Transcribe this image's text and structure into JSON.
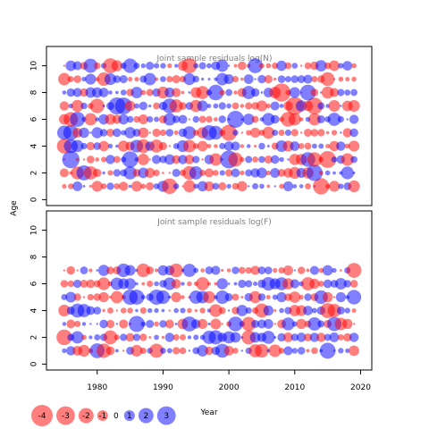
{
  "chart_data": {
    "type": "scatter",
    "subtype": "bubble",
    "ylabel": "Age",
    "xlabel": "Year",
    "xlim": [
      1972.3,
      2021.7
    ],
    "ylim": [
      -0.44,
      11.44
    ],
    "x_ticks": [
      1980,
      1990,
      2000,
      2010,
      2020
    ],
    "y_ticks": [
      0,
      2,
      4,
      6,
      8,
      10
    ],
    "colors": {
      "positive": "#0000ff",
      "negative": "#ff0000",
      "opacity": 0.5
    },
    "panels": [
      {
        "title": "Joint sample residuals log(N)",
        "years": [
          1975,
          2019
        ],
        "ages": [
          1,
          10
        ],
        "residual_seed": 11,
        "residual_mode": "random"
      },
      {
        "title": "Joint sample residuals log(F)",
        "years": [
          1975,
          2019
        ],
        "ages": [
          1,
          7
        ],
        "residual_seed": 29,
        "residual_mode": "random"
      }
    ],
    "legend": {
      "values": [
        -4,
        -3,
        -2,
        -1,
        0,
        1,
        2,
        3
      ],
      "labels": [
        "-4",
        "-3",
        "-2",
        "-1",
        "0",
        "1",
        "2",
        "3"
      ]
    }
  }
}
